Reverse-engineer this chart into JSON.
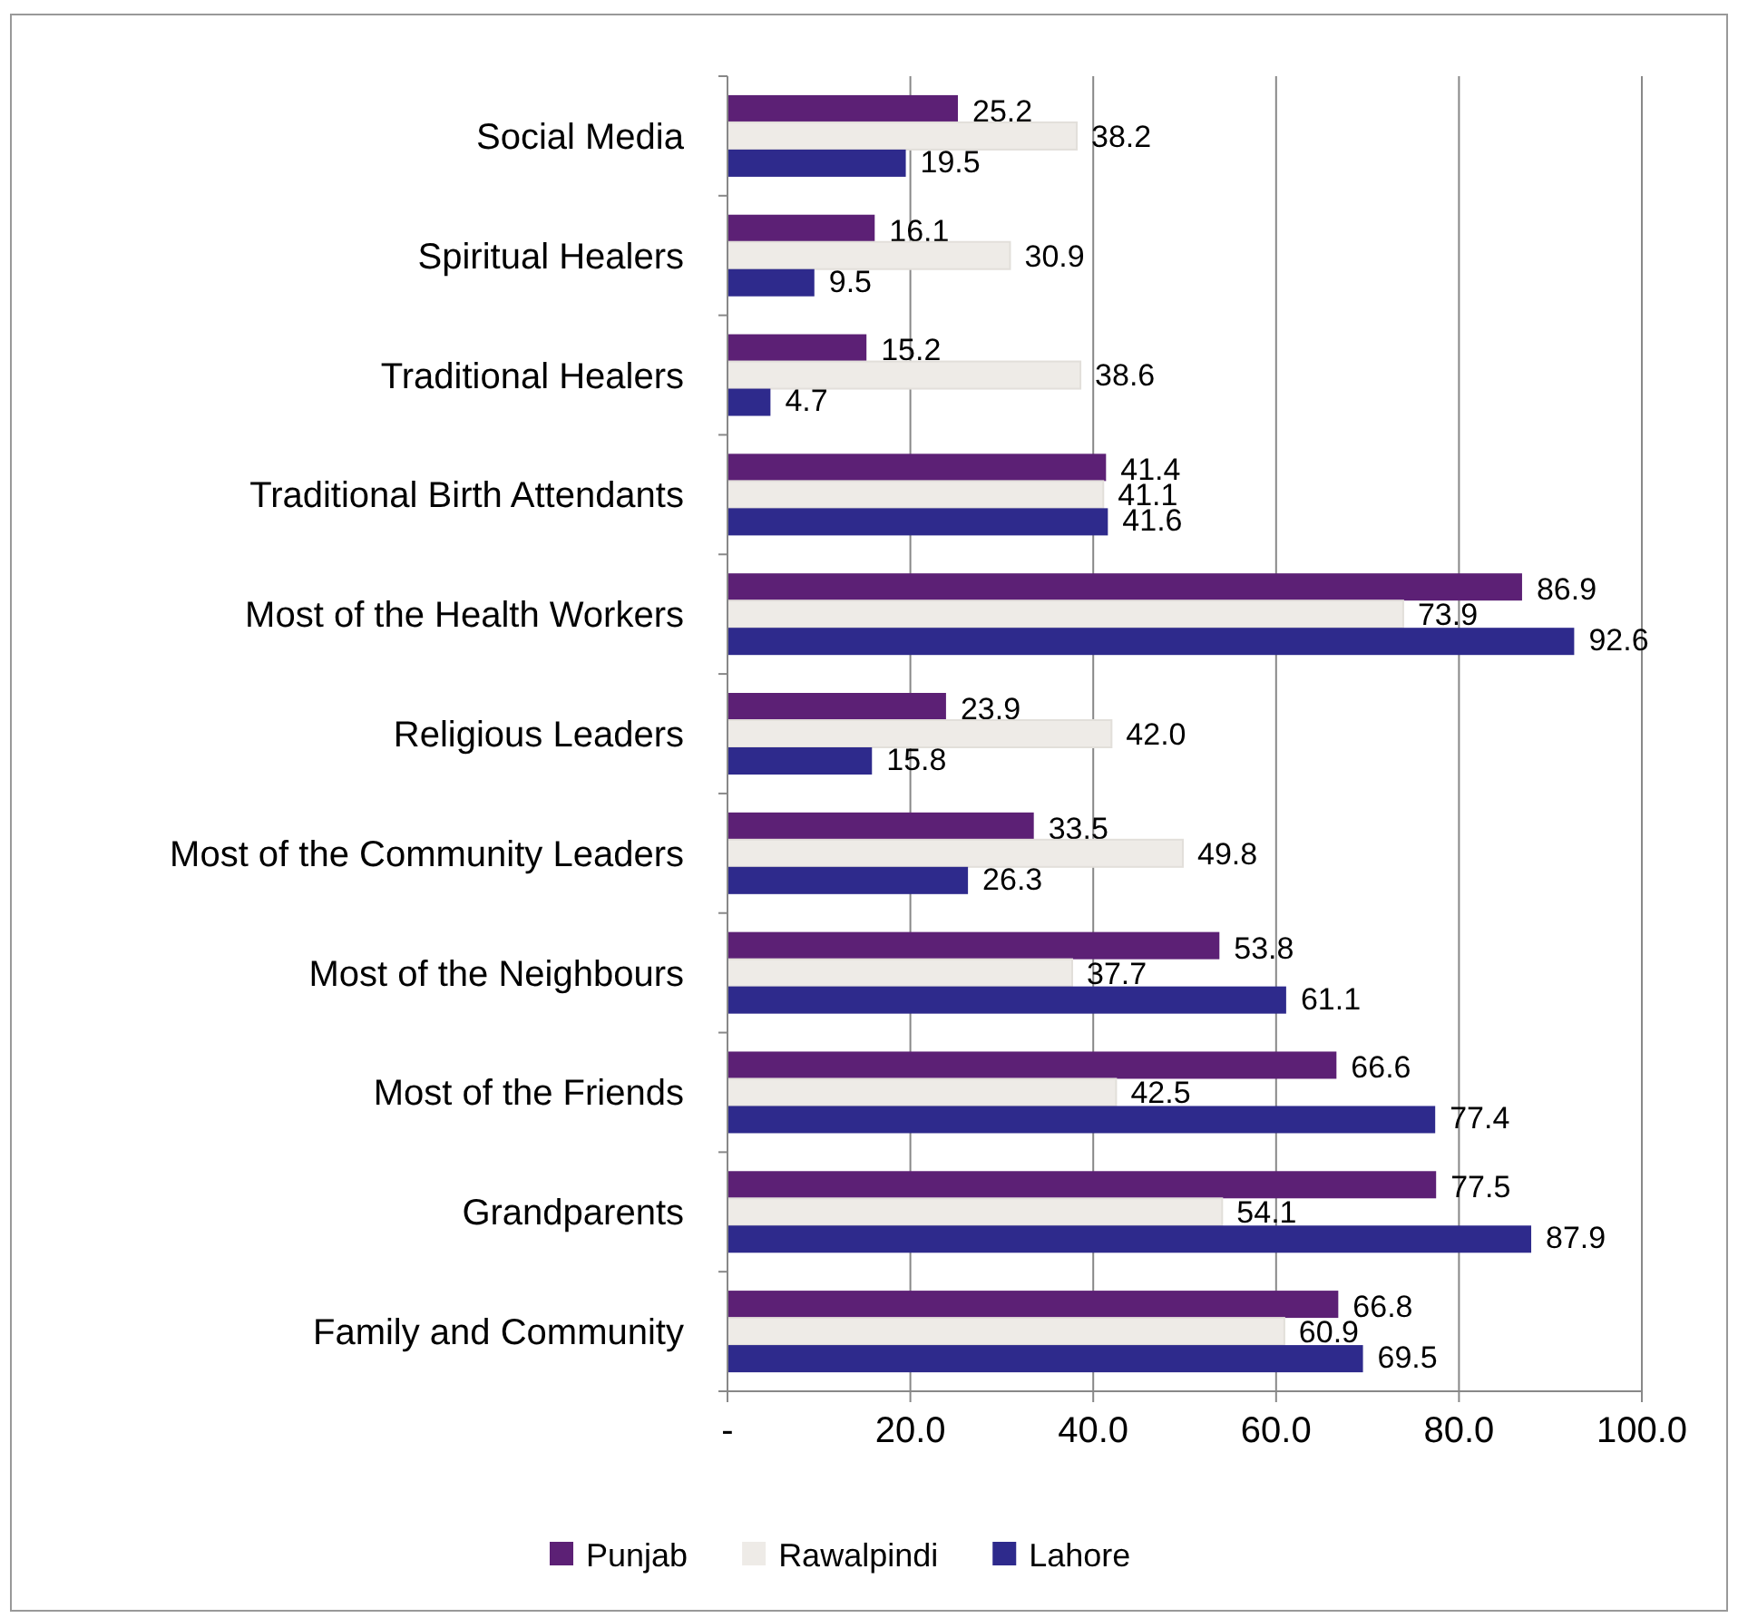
{
  "chart_data": {
    "type": "bar",
    "orientation": "horizontal",
    "categories": [
      "Social Media",
      "Spiritual Healers",
      "Traditional Healers",
      "Traditional Birth Attendants",
      "Most of the Health Workers",
      "Religious Leaders",
      "Most of the Community Leaders",
      "Most of the Neighbours",
      "Most of the Friends",
      "Grandparents",
      "Family and Community "
    ],
    "series": [
      {
        "name": "Punjab",
        "color": "#5c2075",
        "values": [
          25.2,
          16.1,
          15.2,
          41.4,
          86.9,
          23.9,
          33.5,
          53.8,
          66.6,
          77.5,
          66.8
        ],
        "value_labels": [
          "25.2",
          "16.1",
          "15.2",
          "41.4",
          "86.9",
          "23.9",
          "33.5",
          "53.8",
          "66.6",
          "77.5",
          "66.8"
        ]
      },
      {
        "name": "Rawalpindi",
        "color": "#eeebe7",
        "values": [
          38.2,
          30.9,
          38.6,
          41.1,
          73.9,
          42.0,
          49.8,
          37.7,
          42.5,
          54.1,
          60.9
        ],
        "value_labels": [
          "38.2",
          "30.9",
          "38.6",
          "41.1",
          "73.9",
          "42.0",
          "49.8",
          "37.7",
          "42.5",
          "54.1",
          "60.9"
        ]
      },
      {
        "name": "Lahore",
        "color": "#2e2a8c",
        "values": [
          19.5,
          9.5,
          4.7,
          41.6,
          92.6,
          15.8,
          26.3,
          61.1,
          77.4,
          87.9,
          69.5
        ],
        "value_labels": [
          "19.5",
          "9.5",
          "4.7",
          "41.6",
          "92.6",
          "15.8",
          "26.3",
          "61.1",
          "77.4",
          "87.9",
          "69.5"
        ]
      }
    ],
    "xlim": [
      0,
      100
    ],
    "xticks": [
      {
        "value": 0,
        "label": "-"
      },
      {
        "value": 20,
        "label": "20.0"
      },
      {
        "value": 40,
        "label": "40.0"
      },
      {
        "value": 60,
        "label": "60.0"
      },
      {
        "value": 80,
        "label": "80.0"
      },
      {
        "value": 100,
        "label": "100.0"
      }
    ],
    "grid": "x",
    "legend": "bottom"
  }
}
